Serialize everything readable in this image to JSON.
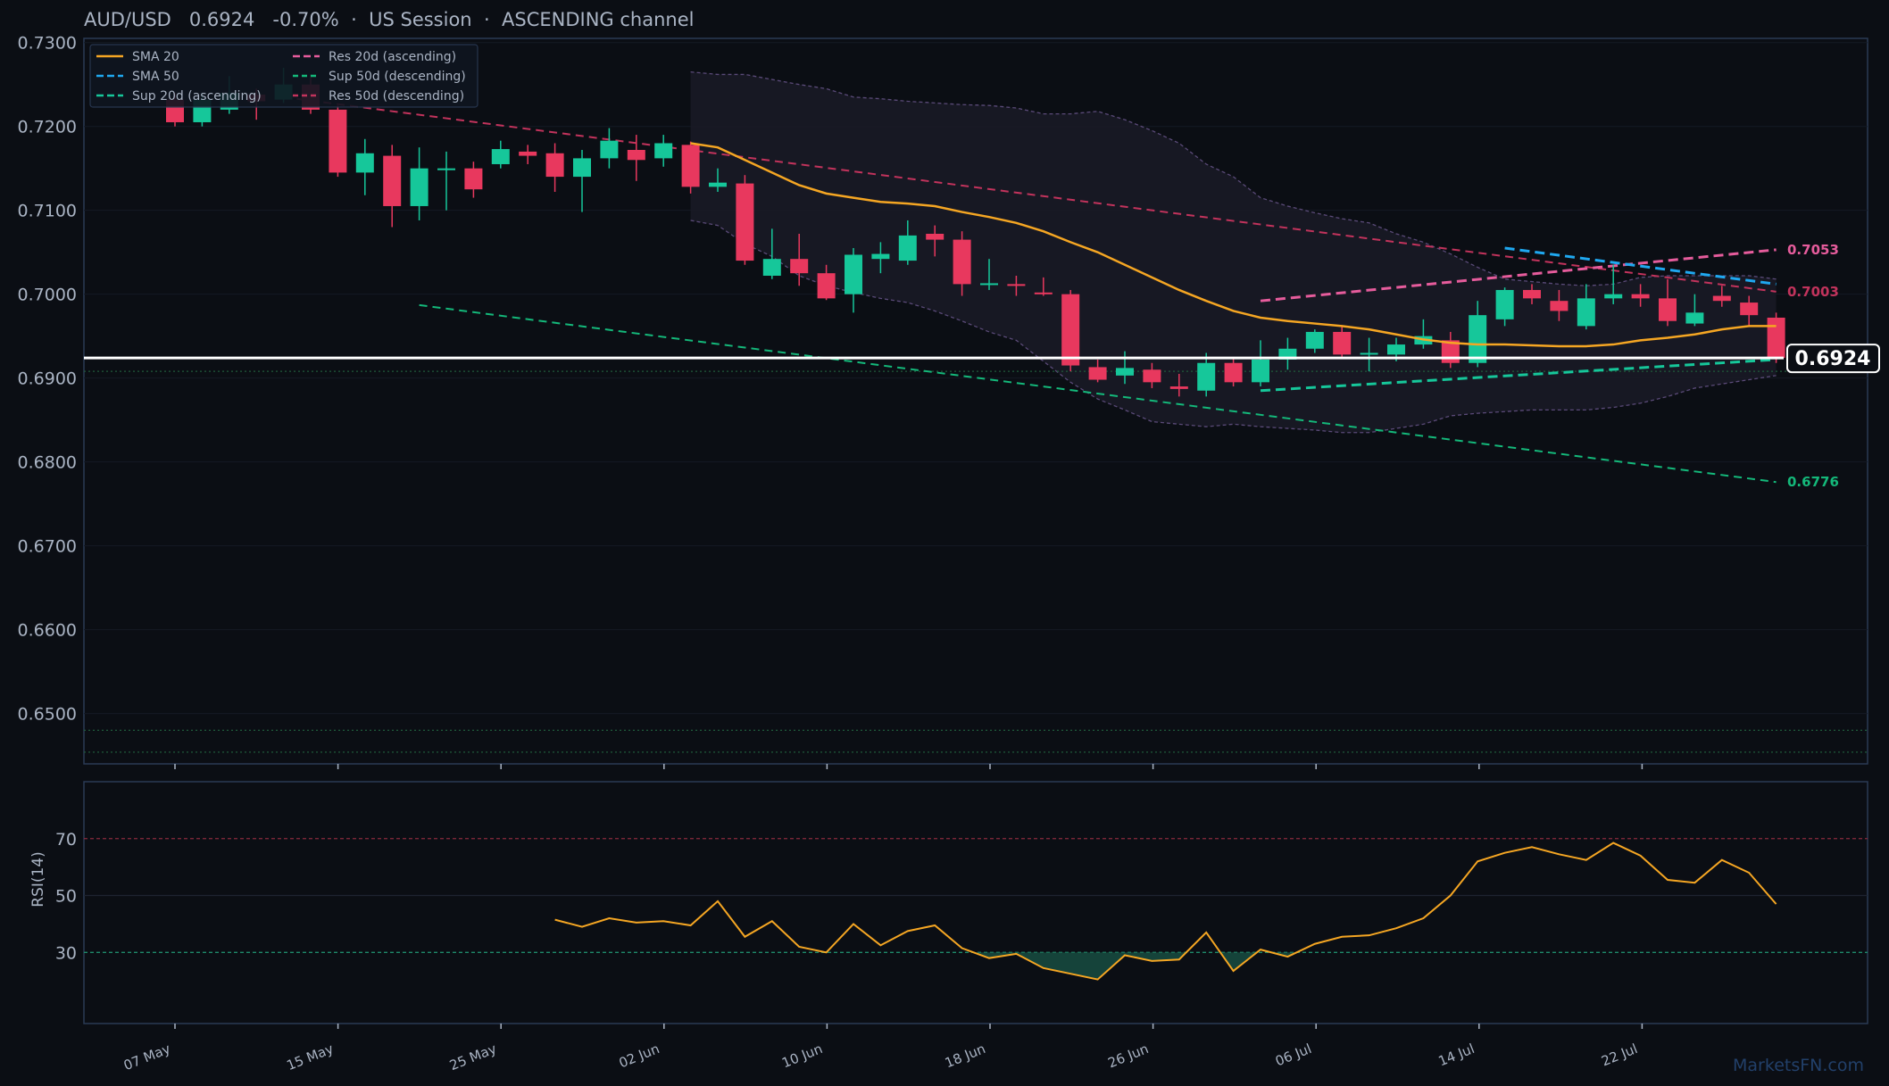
{
  "header": {
    "pair": "AUD/USD",
    "price": "0.6924",
    "change": "-0.70%",
    "sep1": "·",
    "session": "US Session",
    "sep2": "·",
    "channel": "ASCENDING channel"
  },
  "watermark": "MarketsFN.com",
  "colors": {
    "up": "#16c79a",
    "down": "#e8385e",
    "sma20": "#f5a623",
    "sma50": "#1fa8f0",
    "res_asc": "#e65c9c",
    "res_desc": "#c2335c",
    "sup_green": "#14b87a",
    "rsi": "#f5a623"
  },
  "chart_data": [
    {
      "type": "candlestick",
      "x_ticks": [
        "07 May",
        "15 May",
        "25 May",
        "02 Jun",
        "10 Jun",
        "18 Jun",
        "26 Jun",
        "06 Jul",
        "14 Jul",
        "22 Jul"
      ],
      "ylim": [
        0.644,
        0.7305
      ],
      "y_ticks": [
        "0.7300",
        "0.7200",
        "0.7100",
        "0.7000",
        "0.6900",
        "0.6800",
        "0.6700",
        "0.6600",
        "0.6500"
      ],
      "current_price": 0.6924,
      "current_price_label": "0.6924",
      "legend": {
        "placement": "top-left",
        "entries": [
          "SMA 20",
          "SMA 50",
          "Sup 20d (ascending)",
          "Res 20d (ascending)",
          "Sup 50d (descending)",
          "Res 50d (descending)"
        ]
      },
      "candles": [
        [
          0,
          0.7232,
          0.724,
          0.72,
          0.7205
        ],
        [
          1,
          0.7205,
          0.724,
          0.72,
          0.7232
        ],
        [
          2,
          0.722,
          0.726,
          0.7215,
          0.724
        ],
        [
          3,
          0.7238,
          0.7245,
          0.7208,
          0.723
        ],
        [
          4,
          0.7232,
          0.727,
          0.7228,
          0.725
        ],
        [
          5,
          0.725,
          0.7262,
          0.7215,
          0.722
        ],
        [
          6,
          0.722,
          0.7225,
          0.714,
          0.7145
        ],
        [
          7,
          0.7145,
          0.7185,
          0.7118,
          0.7168
        ],
        [
          8,
          0.7165,
          0.7178,
          0.708,
          0.7105
        ],
        [
          9,
          0.7105,
          0.7175,
          0.7088,
          0.715
        ],
        [
          10,
          0.7148,
          0.717,
          0.71,
          0.715
        ],
        [
          11,
          0.715,
          0.7158,
          0.7115,
          0.7125
        ],
        [
          12,
          0.7155,
          0.7183,
          0.715,
          0.7173
        ],
        [
          13,
          0.717,
          0.7178,
          0.7155,
          0.7165
        ],
        [
          14,
          0.7168,
          0.718,
          0.7122,
          0.714
        ],
        [
          15,
          0.714,
          0.7172,
          0.7098,
          0.7162
        ],
        [
          16,
          0.7162,
          0.7198,
          0.715,
          0.7183
        ],
        [
          17,
          0.7172,
          0.719,
          0.7135,
          0.716
        ],
        [
          18,
          0.7162,
          0.719,
          0.7152,
          0.718
        ],
        [
          19,
          0.7178,
          0.7182,
          0.712,
          0.7128
        ],
        [
          20,
          0.7128,
          0.715,
          0.7122,
          0.7133
        ],
        [
          21,
          0.7132,
          0.7142,
          0.7035,
          0.704
        ],
        [
          22,
          0.7022,
          0.7078,
          0.7018,
          0.7042
        ],
        [
          23,
          0.7042,
          0.7072,
          0.701,
          0.7025
        ],
        [
          24,
          0.7025,
          0.7035,
          0.6993,
          0.6995
        ],
        [
          25,
          0.7,
          0.7055,
          0.6978,
          0.7047
        ],
        [
          26,
          0.7042,
          0.7062,
          0.7025,
          0.7048
        ],
        [
          27,
          0.704,
          0.7088,
          0.7035,
          0.707
        ],
        [
          28,
          0.7072,
          0.7082,
          0.7045,
          0.7065
        ],
        [
          29,
          0.7065,
          0.7075,
          0.6998,
          0.7012
        ],
        [
          30,
          0.7012,
          0.7042,
          0.7005,
          0.7013
        ],
        [
          31,
          0.7012,
          0.7022,
          0.6998,
          0.701
        ],
        [
          32,
          0.7002,
          0.702,
          0.6998,
          0.7
        ],
        [
          33,
          0.7,
          0.7005,
          0.6908,
          0.6915
        ],
        [
          34,
          0.6913,
          0.6922,
          0.6895,
          0.6898
        ],
        [
          35,
          0.6903,
          0.6932,
          0.6893,
          0.6912
        ],
        [
          36,
          0.691,
          0.6918,
          0.6888,
          0.6895
        ],
        [
          37,
          0.689,
          0.6905,
          0.6878,
          0.6887
        ],
        [
          38,
          0.6885,
          0.693,
          0.6878,
          0.6918
        ],
        [
          39,
          0.6918,
          0.6925,
          0.689,
          0.6895
        ],
        [
          40,
          0.6895,
          0.6945,
          0.689,
          0.6922
        ],
        [
          41,
          0.6922,
          0.6948,
          0.691,
          0.6935
        ],
        [
          42,
          0.6935,
          0.6958,
          0.693,
          0.6955
        ],
        [
          43,
          0.6955,
          0.6962,
          0.6925,
          0.6928
        ],
        [
          44,
          0.6928,
          0.6948,
          0.6908,
          0.693
        ],
        [
          45,
          0.6928,
          0.6948,
          0.692,
          0.694
        ],
        [
          46,
          0.694,
          0.697,
          0.6935,
          0.695
        ],
        [
          47,
          0.6945,
          0.6955,
          0.6912,
          0.6918
        ],
        [
          48,
          0.6918,
          0.6992,
          0.6913,
          0.6975
        ],
        [
          49,
          0.697,
          0.7008,
          0.6962,
          0.7005
        ],
        [
          50,
          0.7005,
          0.7012,
          0.6988,
          0.6995
        ],
        [
          51,
          0.6992,
          0.7005,
          0.6968,
          0.698
        ],
        [
          52,
          0.6962,
          0.7012,
          0.6958,
          0.6995
        ],
        [
          53,
          0.6995,
          0.7035,
          0.6988,
          0.7
        ],
        [
          54,
          0.7,
          0.7012,
          0.6985,
          0.6995
        ],
        [
          55,
          0.6995,
          0.7018,
          0.6962,
          0.6968
        ],
        [
          56,
          0.6965,
          0.7,
          0.6962,
          0.6978
        ],
        [
          57,
          0.6998,
          0.701,
          0.6985,
          0.6992
        ],
        [
          58,
          0.699,
          0.6998,
          0.6962,
          0.6975
        ],
        [
          59,
          0.6972,
          0.6978,
          0.6918,
          0.6924
        ]
      ],
      "sma20": [
        [
          19,
          0.718
        ],
        [
          20,
          0.7175
        ],
        [
          21,
          0.716
        ],
        [
          22,
          0.7145
        ],
        [
          23,
          0.713
        ],
        [
          24,
          0.712
        ],
        [
          25,
          0.7115
        ],
        [
          26,
          0.711
        ],
        [
          27,
          0.7108
        ],
        [
          28,
          0.7105
        ],
        [
          29,
          0.7098
        ],
        [
          30,
          0.7092
        ],
        [
          31,
          0.7085
        ],
        [
          32,
          0.7075
        ],
        [
          33,
          0.7062
        ],
        [
          34,
          0.705
        ],
        [
          35,
          0.7035
        ],
        [
          36,
          0.702
        ],
        [
          37,
          0.7005
        ],
        [
          38,
          0.6992
        ],
        [
          39,
          0.698
        ],
        [
          40,
          0.6972
        ],
        [
          41,
          0.6968
        ],
        [
          42,
          0.6965
        ],
        [
          43,
          0.6962
        ],
        [
          44,
          0.6958
        ],
        [
          45,
          0.6952
        ],
        [
          46,
          0.6946
        ],
        [
          47,
          0.6942
        ],
        [
          48,
          0.694
        ],
        [
          49,
          0.694
        ],
        [
          50,
          0.6939
        ],
        [
          51,
          0.6938
        ],
        [
          52,
          0.6938
        ],
        [
          53,
          0.694
        ],
        [
          54,
          0.6945
        ],
        [
          55,
          0.6948
        ],
        [
          56,
          0.6952
        ],
        [
          57,
          0.6958
        ],
        [
          58,
          0.6962
        ],
        [
          59,
          0.6962
        ]
      ],
      "sma50": [
        [
          49,
          0.7055
        ],
        [
          59,
          0.7012
        ]
      ],
      "res20_asc": [
        [
          40,
          0.6992
        ],
        [
          59,
          0.7053
        ]
      ],
      "sup20_asc": [
        [
          40,
          0.6885
        ],
        [
          59,
          0.6922
        ]
      ],
      "res50_desc": [
        [
          4,
          0.7235
        ],
        [
          59,
          0.7003
        ]
      ],
      "sup50_desc": [
        [
          9,
          0.6987
        ],
        [
          59,
          0.6776
        ]
      ],
      "line_labels": [
        {
          "value": 0.7053,
          "text": "0.7053",
          "color": "#e65c9c"
        },
        {
          "value": 0.7003,
          "text": "0.7003",
          "color": "#c2335c"
        },
        {
          "value": 0.6776,
          "text": "0.6776",
          "color": "#14b87a"
        }
      ],
      "levels": [
        0.6908,
        0.648,
        0.6454
      ],
      "bands_start_index": 19,
      "bands_upper": [
        0.7265,
        0.7262,
        0.7262,
        0.7256,
        0.725,
        0.7245,
        0.7235,
        0.7233,
        0.723,
        0.7228,
        0.7226,
        0.7225,
        0.7222,
        0.7215,
        0.7215,
        0.7218,
        0.7208,
        0.7195,
        0.718,
        0.7155,
        0.714,
        0.7115,
        0.7105,
        0.7097,
        0.709,
        0.7085,
        0.7072,
        0.7062,
        0.7048,
        0.7032,
        0.7018,
        0.7015,
        0.7012,
        0.701,
        0.7012,
        0.702,
        0.7022,
        0.7022,
        0.7022,
        0.7022,
        0.7018
      ],
      "bands_lower": [
        0.7088,
        0.7082,
        0.706,
        0.7045,
        0.7022,
        0.701,
        0.7002,
        0.6995,
        0.699,
        0.698,
        0.6968,
        0.6955,
        0.6945,
        0.692,
        0.6895,
        0.6875,
        0.6862,
        0.6848,
        0.6845,
        0.6842,
        0.6845,
        0.6842,
        0.684,
        0.6838,
        0.6835,
        0.6835,
        0.684,
        0.6845,
        0.6855,
        0.6858,
        0.686,
        0.6862,
        0.6862,
        0.6862,
        0.6865,
        0.687,
        0.6878,
        0.6888,
        0.6893,
        0.6898,
        0.6903
      ]
    },
    {
      "type": "line",
      "ylabel": "RSI(14)",
      "ylim": [
        5,
        90
      ],
      "y_ticks": [
        "70",
        "50",
        "30"
      ],
      "overbought": 70,
      "oversold": 30,
      "start_index": 14,
      "values": [
        41.5,
        39,
        42,
        40.5,
        41,
        39.5,
        48,
        35.5,
        41,
        32,
        30,
        40,
        32.5,
        37.5,
        39.5,
        31.5,
        28,
        29.5,
        24.5,
        22.5,
        20.5,
        29,
        27,
        27.5,
        37,
        23.5,
        31,
        28.5,
        33,
        35.5,
        36,
        38.5,
        42,
        50,
        62,
        65,
        67,
        64.5,
        62.5,
        68.5,
        64,
        55.5,
        54.5,
        62.5,
        58,
        47
      ]
    }
  ]
}
